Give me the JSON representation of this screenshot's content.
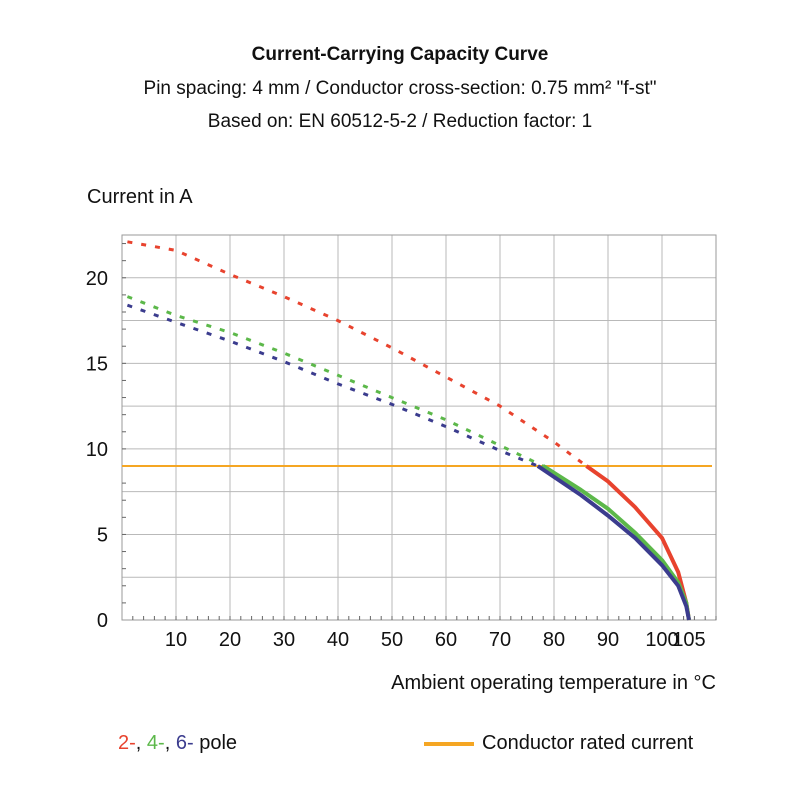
{
  "chart_data": {
    "type": "line",
    "title": "Current-Carrying Capacity Curve",
    "subtitle_1": "Pin spacing: 4 mm / Conductor cross-section: 0.75 mm² \"f-st\"",
    "subtitle_2": "Based on: EN 60512-5-2 / Reduction factor: 1",
    "ylabel": "Current in A",
    "xlabel": "Ambient operating temperature in °C",
    "xlim": [
      0,
      110
    ],
    "ylim": [
      0,
      22.5
    ],
    "x_ticks": [
      10,
      20,
      30,
      40,
      50,
      60,
      70,
      80,
      90,
      100,
      105
    ],
    "x_tick_labels": [
      "10",
      "20",
      "30",
      "40",
      "50",
      "60",
      "70",
      "80",
      "90",
      "100",
      "105"
    ],
    "y_ticks": [
      0,
      5,
      10,
      15,
      20
    ],
    "y_tick_labels": [
      "0",
      "5",
      "10",
      "15",
      "20"
    ],
    "grid": true,
    "rated_current": 9,
    "series": [
      {
        "pole": "2-",
        "color": "#e8432e",
        "dotted": [
          [
            1,
            22.1
          ],
          [
            10,
            21.6
          ],
          [
            20,
            20.2
          ],
          [
            30,
            18.9
          ],
          [
            40,
            17.5
          ],
          [
            50,
            15.9
          ],
          [
            60,
            14.2
          ],
          [
            70,
            12.5
          ],
          [
            80,
            10.4
          ],
          [
            86,
            9.0
          ]
        ],
        "solid": [
          [
            86,
            9.0
          ],
          [
            90,
            8.1
          ],
          [
            95,
            6.6
          ],
          [
            100,
            4.8
          ],
          [
            103,
            2.8
          ],
          [
            104.5,
            1.0
          ],
          [
            105,
            0
          ]
        ]
      },
      {
        "pole": "4-",
        "color": "#5cb84a",
        "dotted": [
          [
            1,
            18.9
          ],
          [
            10,
            17.8
          ],
          [
            20,
            16.8
          ],
          [
            30,
            15.6
          ],
          [
            40,
            14.3
          ],
          [
            50,
            13.0
          ],
          [
            60,
            11.7
          ],
          [
            70,
            10.2
          ],
          [
            78,
            9.0
          ]
        ],
        "solid": [
          [
            78,
            9.0
          ],
          [
            85,
            7.6
          ],
          [
            90,
            6.5
          ],
          [
            95,
            5.1
          ],
          [
            100,
            3.5
          ],
          [
            103,
            2.2
          ],
          [
            104.5,
            1.0
          ],
          [
            105,
            0
          ]
        ]
      },
      {
        "pole": "6-",
        "color": "#3b3c8e",
        "dotted": [
          [
            1,
            18.4
          ],
          [
            10,
            17.4
          ],
          [
            20,
            16.3
          ],
          [
            30,
            15.1
          ],
          [
            40,
            13.8
          ],
          [
            50,
            12.6
          ],
          [
            60,
            11.3
          ],
          [
            70,
            9.9
          ],
          [
            77,
            9.0
          ]
        ],
        "solid": [
          [
            77,
            9.0
          ],
          [
            85,
            7.3
          ],
          [
            90,
            6.1
          ],
          [
            95,
            4.8
          ],
          [
            100,
            3.2
          ],
          [
            103,
            2.0
          ],
          [
            104.5,
            0.8
          ],
          [
            105,
            0
          ]
        ]
      }
    ],
    "legend_pole_parts": [
      {
        "text": "2-",
        "color": "#e8432e"
      },
      {
        "text": ", ",
        "color": "#111111"
      },
      {
        "text": "4-",
        "color": "#5cb84a"
      },
      {
        "text": ", ",
        "color": "#111111"
      },
      {
        "text": "6-",
        "color": "#3b3c8e"
      },
      {
        "text": " pole",
        "color": "#111111"
      }
    ],
    "legend_rated": "Conductor rated current",
    "rated_color": "#f5a623"
  }
}
